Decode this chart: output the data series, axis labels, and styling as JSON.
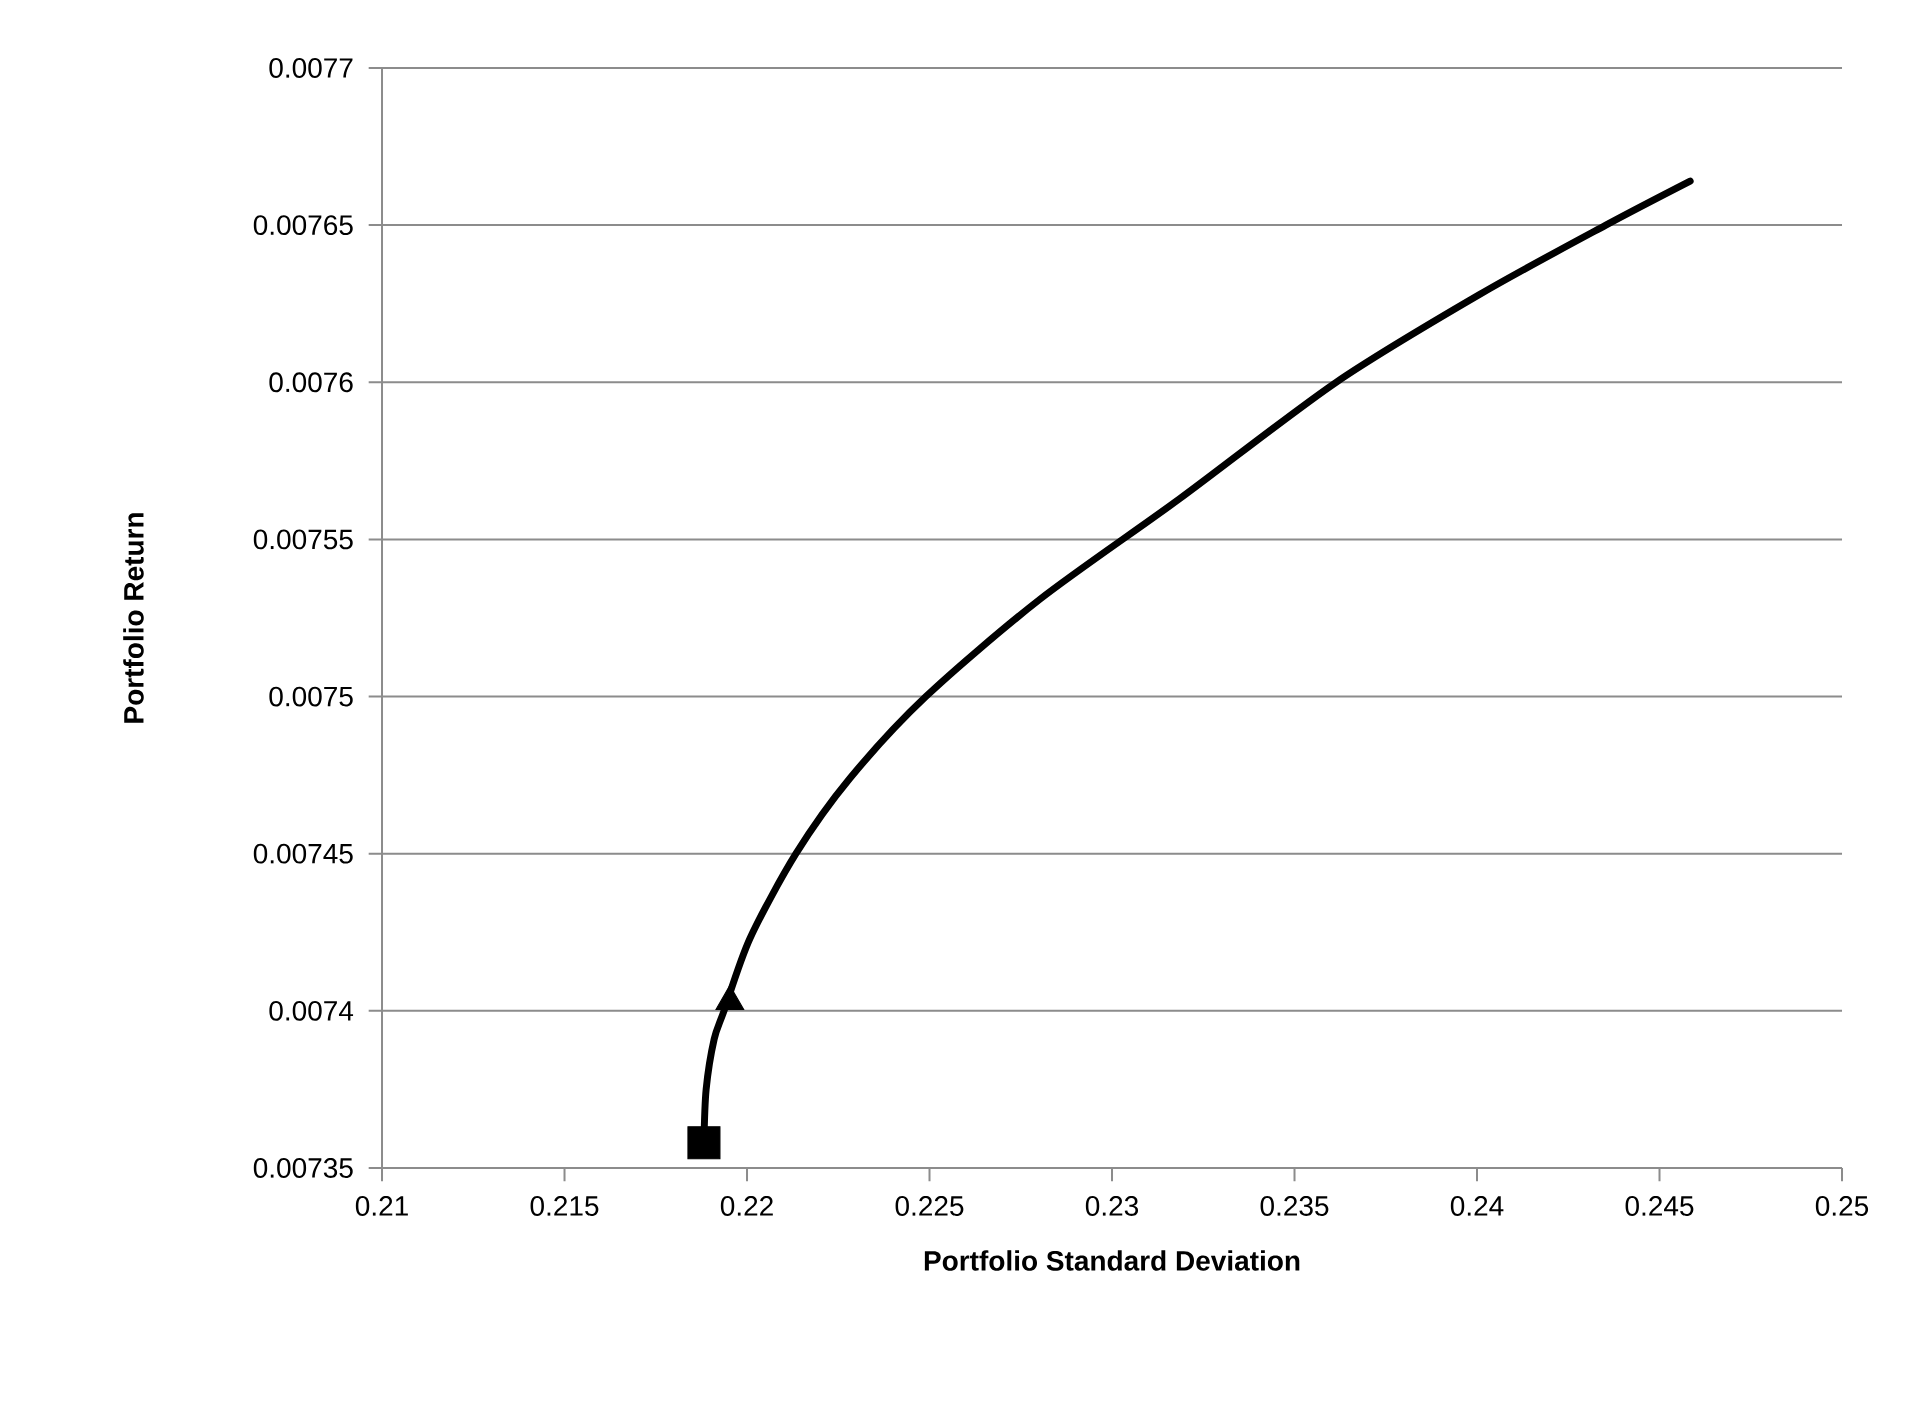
{
  "chart_data": {
    "type": "line",
    "xlabel": "Portfolio Standard Deviation",
    "ylabel": "Portfolio Return",
    "xlim": [
      0.21,
      0.25
    ],
    "ylim": [
      0.00735,
      0.0077
    ],
    "xticks": [
      0.21,
      0.215,
      0.22,
      0.225,
      0.23,
      0.235,
      0.24,
      0.245,
      0.25
    ],
    "yticks": [
      0.00735,
      0.0074,
      0.00745,
      0.0075,
      0.00755,
      0.0076,
      0.00765,
      0.0077
    ],
    "grid": "y",
    "series": [
      {
        "color": "#000000",
        "marker": "none",
        "x": [
          0.21882,
          0.21888,
          0.2191,
          0.21937,
          0.22008,
          0.22134,
          0.22282,
          0.2249,
          0.22803,
          0.23186,
          0.23614,
          0.24008,
          0.24353,
          0.24584
        ],
        "values": [
          0.007358,
          0.007375,
          0.007391,
          0.0074,
          0.007423,
          0.00745,
          0.007474,
          0.0075,
          0.007531,
          0.007563,
          0.0076,
          0.007628,
          0.00765,
          0.007664
        ]
      },
      {
        "type": "scatter",
        "color": "#000000",
        "marker": "square",
        "x": [
          0.21882
        ],
        "values": [
          0.007358
        ]
      },
      {
        "type": "scatter",
        "color": "#000000",
        "marker": "triangle",
        "x": [
          0.21953
        ],
        "values": [
          0.007403
        ]
      }
    ]
  }
}
